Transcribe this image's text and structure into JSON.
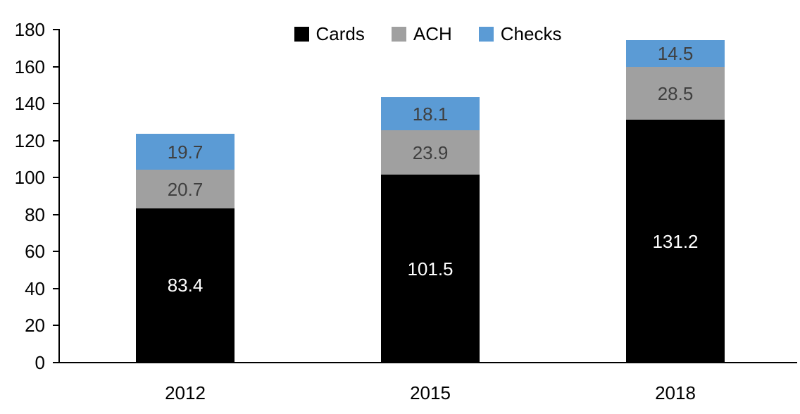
{
  "chart_data": {
    "type": "bar",
    "stacked": true,
    "title": "",
    "xlabel": "",
    "ylabel": "",
    "categories": [
      "2012",
      "2015",
      "2018"
    ],
    "series": [
      {
        "name": "Cards",
        "values": [
          83.4,
          101.5,
          131.2
        ],
        "color": "#000000",
        "label_color": "#ffffff"
      },
      {
        "name": "ACH",
        "values": [
          20.7,
          23.9,
          28.5
        ],
        "color": "#a0a0a0",
        "label_color": "#3f3f3f"
      },
      {
        "name": "Checks",
        "values": [
          19.7,
          18.1,
          14.5
        ],
        "color": "#5b9bd5",
        "label_color": "#3f3f3f"
      }
    ],
    "totals": [
      123.8,
      143.5,
      174.2
    ],
    "ylim": [
      0,
      180
    ],
    "ytick_step": 20,
    "ytick_labels": [
      "0",
      "20",
      "40",
      "60",
      "80",
      "100",
      "120",
      "140",
      "160",
      "180"
    ],
    "legend_position": "top-center",
    "grid": false,
    "axis_color": "#000000",
    "background_color": "#ffffff"
  }
}
